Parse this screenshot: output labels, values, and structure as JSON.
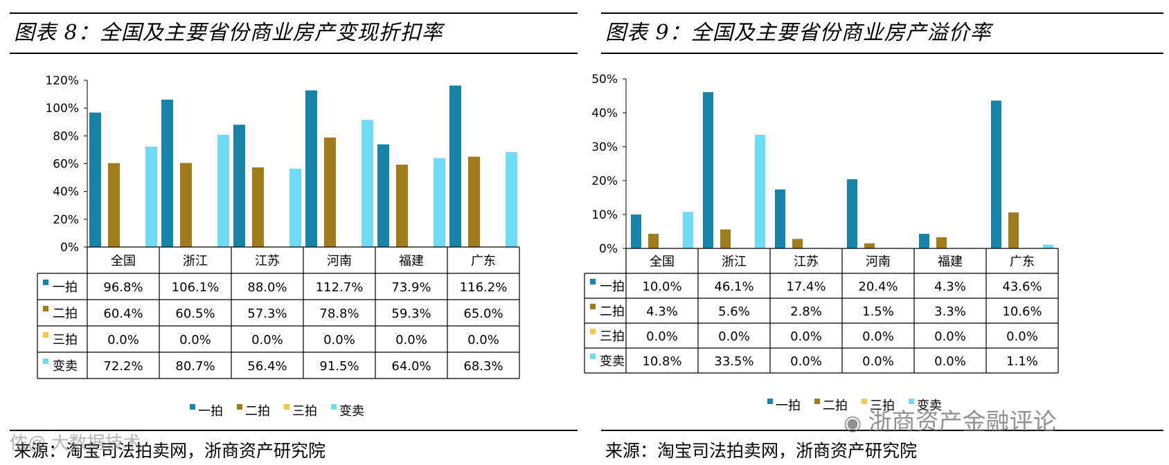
{
  "colors": {
    "s1": "#1584a8",
    "s2": "#a07d1a",
    "s3": "#f2c84b",
    "s4": "#6fdcf5"
  },
  "left": {
    "title": "图表 8：全国及主要省份商业房产变现折扣率",
    "source": "来源：淘宝司法拍卖网，浙商资产研究院",
    "watermark": "侬@ 大数据技术"
  },
  "right": {
    "title": "图表 9：全国及主要省份商业房产溢价率",
    "source": "来源：淘宝司法拍卖网，浙商资产研究院",
    "watermark_brand": "浙商资产金融评论"
  },
  "chart_data": [
    {
      "type": "bar",
      "title": "全国及主要省份商业房产变现折扣率",
      "categories": [
        "全国",
        "浙江",
        "江苏",
        "河南",
        "福建",
        "广东"
      ],
      "ylim": [
        0,
        120
      ],
      "yticks": [
        "0%",
        "20%",
        "40%",
        "60%",
        "80%",
        "100%",
        "120%"
      ],
      "series": [
        {
          "name": "一拍",
          "values": [
            96.8,
            106.1,
            88.0,
            112.7,
            73.9,
            116.2
          ],
          "labels": [
            "96.8%",
            "106.1%",
            "88.0%",
            "112.7%",
            "73.9%",
            "116.2%"
          ]
        },
        {
          "name": "二拍",
          "values": [
            60.4,
            60.5,
            57.3,
            78.8,
            59.3,
            65.0
          ],
          "labels": [
            "60.4%",
            "60.5%",
            "57.3%",
            "78.8%",
            "59.3%",
            "65.0%"
          ]
        },
        {
          "name": "三拍",
          "values": [
            0.0,
            0.0,
            0.0,
            0.0,
            0.0,
            0.0
          ],
          "labels": [
            "0.0%",
            "0.0%",
            "0.0%",
            "0.0%",
            "0.0%",
            "0.0%"
          ]
        },
        {
          "name": "变卖",
          "values": [
            72.2,
            80.7,
            56.4,
            91.5,
            64.0,
            68.3
          ],
          "labels": [
            "72.2%",
            "80.7%",
            "56.4%",
            "91.5%",
            "64.0%",
            "68.3%"
          ]
        }
      ],
      "legend": [
        "一拍",
        "二拍",
        "三拍",
        "变卖"
      ]
    },
    {
      "type": "bar",
      "title": "全国及主要省份商业房产溢价率",
      "categories": [
        "全国",
        "浙江",
        "江苏",
        "河南",
        "福建",
        "广东"
      ],
      "ylim": [
        0,
        50
      ],
      "yticks": [
        "0%",
        "10%",
        "20%",
        "30%",
        "40%",
        "50%"
      ],
      "series": [
        {
          "name": "一拍",
          "values": [
            10.0,
            46.1,
            17.4,
            20.4,
            4.3,
            43.6
          ],
          "labels": [
            "10.0%",
            "46.1%",
            "17.4%",
            "20.4%",
            "4.3%",
            "43.6%"
          ]
        },
        {
          "name": "二拍",
          "values": [
            4.3,
            5.6,
            2.8,
            1.5,
            3.3,
            10.6
          ],
          "labels": [
            "4.3%",
            "5.6%",
            "2.8%",
            "1.5%",
            "3.3%",
            "10.6%"
          ]
        },
        {
          "name": "三拍",
          "values": [
            0.0,
            0.0,
            0.0,
            0.0,
            0.0,
            0.0
          ],
          "labels": [
            "0.0%",
            "0.0%",
            "0.0%",
            "0.0%",
            "0.0%",
            "0.0%"
          ]
        },
        {
          "name": "变卖",
          "values": [
            10.8,
            33.5,
            0.0,
            0.0,
            0.0,
            1.1
          ],
          "labels": [
            "10.8%",
            "33.5%",
            "0.0%",
            "0.0%",
            "0.0%",
            "1.1%"
          ]
        }
      ],
      "legend": [
        "一拍",
        "二拍",
        "三拍",
        "变卖"
      ]
    }
  ]
}
